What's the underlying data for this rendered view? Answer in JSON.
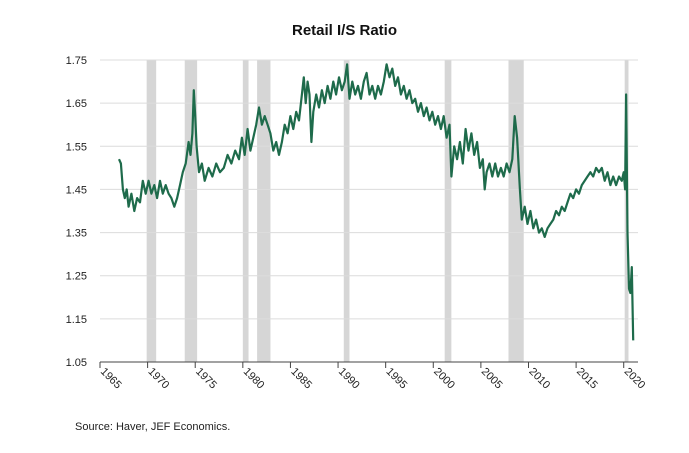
{
  "chart_data": {
    "type": "line",
    "title": "Retail I/S Ratio",
    "source": "Source:  Haver, JEF Economics.",
    "xlabel": "",
    "ylabel": "",
    "xlim": [
      1965,
      2021.5
    ],
    "ylim": [
      1.05,
      1.75
    ],
    "x_ticks": [
      1965,
      1970,
      1975,
      1980,
      1985,
      1990,
      1995,
      2000,
      2005,
      2010,
      2015,
      2020
    ],
    "y_ticks": [
      1.05,
      1.15,
      1.25,
      1.35,
      1.45,
      1.55,
      1.65,
      1.75
    ],
    "y_tick_labels": [
      "1.05",
      "1.15",
      "1.25",
      "1.35",
      "1.45",
      "1.55",
      "1.65",
      "1.75"
    ],
    "grid": "horizontal",
    "line_color": "#1e6b4b",
    "recession_color": "#d6d6d6",
    "recessions": [
      [
        1969.9,
        1970.9
      ],
      [
        1973.9,
        1975.2
      ],
      [
        1980.0,
        1980.6
      ],
      [
        1981.5,
        1982.9
      ],
      [
        1990.6,
        1991.2
      ],
      [
        2001.2,
        2001.9
      ],
      [
        2007.9,
        2009.5
      ],
      [
        2020.1,
        2020.5
      ]
    ],
    "series": [
      {
        "points": [
          [
            1967.0,
            1.52
          ],
          [
            1967.2,
            1.51
          ],
          [
            1967.4,
            1.45
          ],
          [
            1967.6,
            1.43
          ],
          [
            1967.8,
            1.45
          ],
          [
            1968.0,
            1.41
          ],
          [
            1968.3,
            1.44
          ],
          [
            1968.6,
            1.4
          ],
          [
            1968.9,
            1.43
          ],
          [
            1969.2,
            1.42
          ],
          [
            1969.5,
            1.47
          ],
          [
            1969.8,
            1.44
          ],
          [
            1970.1,
            1.47
          ],
          [
            1970.4,
            1.44
          ],
          [
            1970.7,
            1.46
          ],
          [
            1971.0,
            1.43
          ],
          [
            1971.3,
            1.47
          ],
          [
            1971.6,
            1.44
          ],
          [
            1971.9,
            1.46
          ],
          [
            1972.2,
            1.44
          ],
          [
            1972.5,
            1.43
          ],
          [
            1972.8,
            1.41
          ],
          [
            1973.1,
            1.43
          ],
          [
            1973.4,
            1.46
          ],
          [
            1973.7,
            1.49
          ],
          [
            1974.0,
            1.51
          ],
          [
            1974.3,
            1.56
          ],
          [
            1974.5,
            1.53
          ],
          [
            1974.7,
            1.58
          ],
          [
            1974.85,
            1.68
          ],
          [
            1975.0,
            1.62
          ],
          [
            1975.15,
            1.55
          ],
          [
            1975.4,
            1.49
          ],
          [
            1975.7,
            1.51
          ],
          [
            1976.0,
            1.47
          ],
          [
            1976.4,
            1.5
          ],
          [
            1976.8,
            1.48
          ],
          [
            1977.2,
            1.51
          ],
          [
            1977.6,
            1.49
          ],
          [
            1978.0,
            1.5
          ],
          [
            1978.4,
            1.53
          ],
          [
            1978.8,
            1.51
          ],
          [
            1979.2,
            1.54
          ],
          [
            1979.6,
            1.52
          ],
          [
            1979.9,
            1.57
          ],
          [
            1980.2,
            1.53
          ],
          [
            1980.5,
            1.59
          ],
          [
            1980.8,
            1.54
          ],
          [
            1981.1,
            1.57
          ],
          [
            1981.4,
            1.6
          ],
          [
            1981.7,
            1.64
          ],
          [
            1982.0,
            1.6
          ],
          [
            1982.3,
            1.62
          ],
          [
            1982.6,
            1.6
          ],
          [
            1982.9,
            1.58
          ],
          [
            1983.2,
            1.54
          ],
          [
            1983.5,
            1.56
          ],
          [
            1983.8,
            1.53
          ],
          [
            1984.1,
            1.56
          ],
          [
            1984.4,
            1.6
          ],
          [
            1984.7,
            1.58
          ],
          [
            1985.0,
            1.62
          ],
          [
            1985.3,
            1.59
          ],
          [
            1985.6,
            1.63
          ],
          [
            1985.9,
            1.61
          ],
          [
            1986.2,
            1.67
          ],
          [
            1986.4,
            1.71
          ],
          [
            1986.6,
            1.65
          ],
          [
            1986.8,
            1.7
          ],
          [
            1987.0,
            1.67
          ],
          [
            1987.2,
            1.56
          ],
          [
            1987.4,
            1.63
          ],
          [
            1987.7,
            1.67
          ],
          [
            1988.0,
            1.64
          ],
          [
            1988.3,
            1.68
          ],
          [
            1988.6,
            1.65
          ],
          [
            1988.9,
            1.69
          ],
          [
            1989.2,
            1.66
          ],
          [
            1989.5,
            1.7
          ],
          [
            1989.8,
            1.67
          ],
          [
            1990.1,
            1.71
          ],
          [
            1990.4,
            1.68
          ],
          [
            1990.7,
            1.7
          ],
          [
            1990.95,
            1.74
          ],
          [
            1991.2,
            1.66
          ],
          [
            1991.5,
            1.7
          ],
          [
            1991.8,
            1.67
          ],
          [
            1992.1,
            1.69
          ],
          [
            1992.4,
            1.66
          ],
          [
            1992.7,
            1.7
          ],
          [
            1993.0,
            1.72
          ],
          [
            1993.3,
            1.67
          ],
          [
            1993.6,
            1.69
          ],
          [
            1993.9,
            1.66
          ],
          [
            1994.2,
            1.69
          ],
          [
            1994.5,
            1.67
          ],
          [
            1994.8,
            1.7
          ],
          [
            1995.1,
            1.74
          ],
          [
            1995.4,
            1.71
          ],
          [
            1995.7,
            1.73
          ],
          [
            1996.0,
            1.69
          ],
          [
            1996.3,
            1.71
          ],
          [
            1996.6,
            1.67
          ],
          [
            1996.9,
            1.69
          ],
          [
            1997.2,
            1.66
          ],
          [
            1997.5,
            1.68
          ],
          [
            1997.8,
            1.65
          ],
          [
            1998.1,
            1.66
          ],
          [
            1998.4,
            1.63
          ],
          [
            1998.7,
            1.65
          ],
          [
            1999.0,
            1.62
          ],
          [
            1999.3,
            1.64
          ],
          [
            1999.6,
            1.61
          ],
          [
            1999.9,
            1.63
          ],
          [
            2000.2,
            1.6
          ],
          [
            2000.5,
            1.62
          ],
          [
            2000.8,
            1.59
          ],
          [
            2001.1,
            1.62
          ],
          [
            2001.4,
            1.57
          ],
          [
            2001.7,
            1.6
          ],
          [
            2001.9,
            1.48
          ],
          [
            2002.2,
            1.55
          ],
          [
            2002.5,
            1.52
          ],
          [
            2002.8,
            1.56
          ],
          [
            2003.1,
            1.51
          ],
          [
            2003.4,
            1.59
          ],
          [
            2003.7,
            1.54
          ],
          [
            2004.0,
            1.58
          ],
          [
            2004.3,
            1.53
          ],
          [
            2004.6,
            1.56
          ],
          [
            2004.9,
            1.5
          ],
          [
            2005.2,
            1.52
          ],
          [
            2005.4,
            1.45
          ],
          [
            2005.6,
            1.49
          ],
          [
            2005.9,
            1.51
          ],
          [
            2006.2,
            1.48
          ],
          [
            2006.5,
            1.51
          ],
          [
            2006.8,
            1.48
          ],
          [
            2007.1,
            1.5
          ],
          [
            2007.4,
            1.48
          ],
          [
            2007.7,
            1.51
          ],
          [
            2008.0,
            1.49
          ],
          [
            2008.3,
            1.52
          ],
          [
            2008.55,
            1.62
          ],
          [
            2008.8,
            1.57
          ],
          [
            2009.1,
            1.45
          ],
          [
            2009.3,
            1.38
          ],
          [
            2009.6,
            1.41
          ],
          [
            2009.9,
            1.37
          ],
          [
            2010.2,
            1.4
          ],
          [
            2010.5,
            1.36
          ],
          [
            2010.8,
            1.38
          ],
          [
            2011.1,
            1.35
          ],
          [
            2011.4,
            1.36
          ],
          [
            2011.7,
            1.34
          ],
          [
            2012.0,
            1.36
          ],
          [
            2012.3,
            1.37
          ],
          [
            2012.6,
            1.38
          ],
          [
            2012.9,
            1.4
          ],
          [
            2013.2,
            1.39
          ],
          [
            2013.5,
            1.41
          ],
          [
            2013.8,
            1.4
          ],
          [
            2014.1,
            1.42
          ],
          [
            2014.4,
            1.44
          ],
          [
            2014.7,
            1.43
          ],
          [
            2015.0,
            1.45
          ],
          [
            2015.3,
            1.44
          ],
          [
            2015.6,
            1.46
          ],
          [
            2015.9,
            1.47
          ],
          [
            2016.2,
            1.48
          ],
          [
            2016.5,
            1.49
          ],
          [
            2016.8,
            1.48
          ],
          [
            2017.1,
            1.5
          ],
          [
            2017.4,
            1.49
          ],
          [
            2017.7,
            1.5
          ],
          [
            2018.0,
            1.47
          ],
          [
            2018.3,
            1.49
          ],
          [
            2018.6,
            1.46
          ],
          [
            2018.9,
            1.48
          ],
          [
            2019.2,
            1.46
          ],
          [
            2019.5,
            1.48
          ],
          [
            2019.8,
            1.47
          ],
          [
            2020.0,
            1.49
          ],
          [
            2020.15,
            1.45
          ],
          [
            2020.25,
            1.67
          ],
          [
            2020.4,
            1.35
          ],
          [
            2020.55,
            1.22
          ],
          [
            2020.7,
            1.21
          ],
          [
            2020.85,
            1.27
          ],
          [
            2021.0,
            1.1
          ]
        ]
      }
    ]
  }
}
